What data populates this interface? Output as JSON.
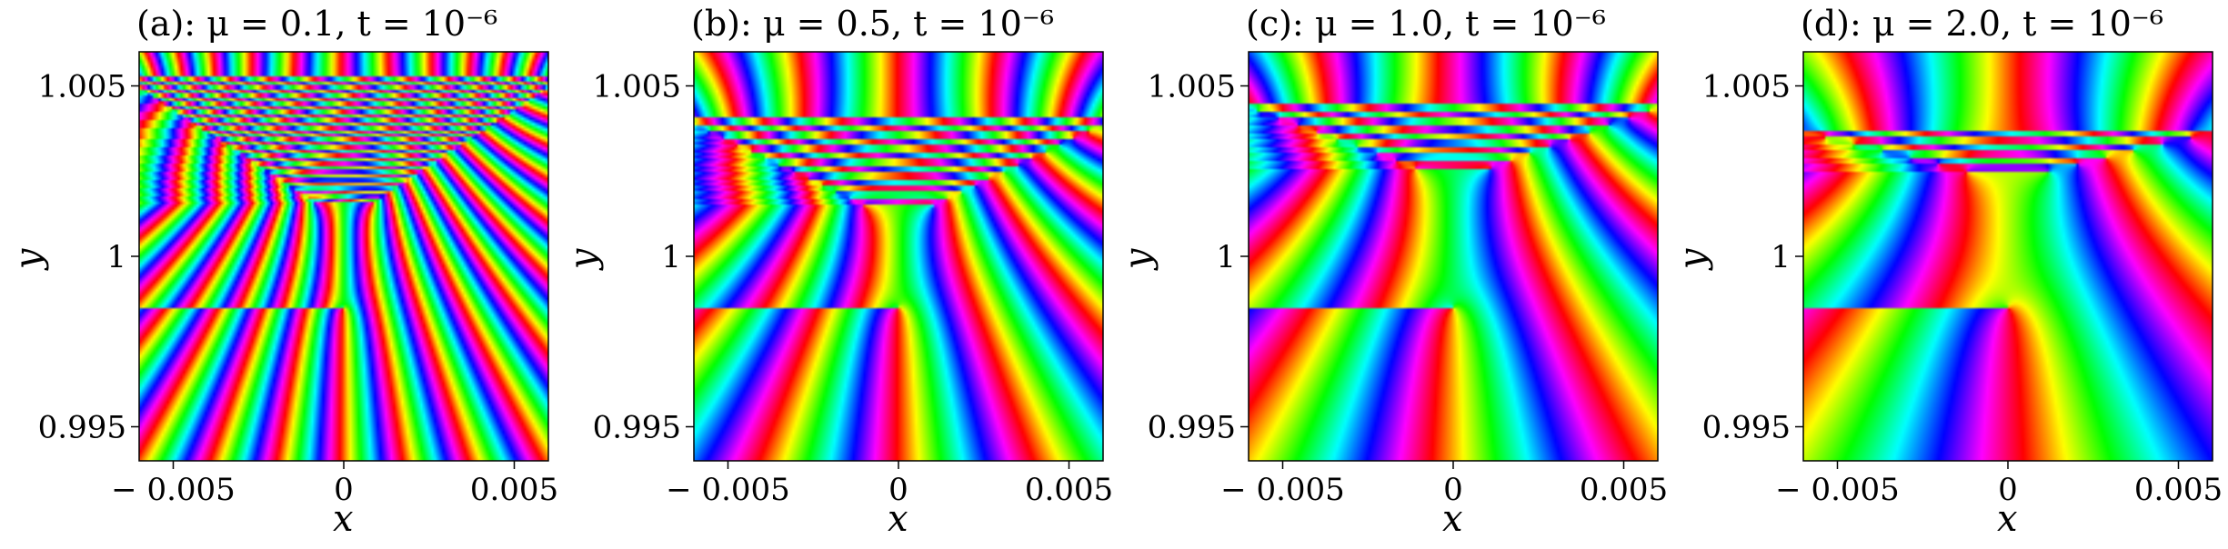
{
  "chart_data": [
    {
      "type": "heatmap",
      "title": "(a): μ = 0.1, t = 10⁻⁶",
      "xlabel": "x",
      "ylabel": "y",
      "xlim": [
        -0.006,
        0.006
      ],
      "ylim": [
        0.994,
        1.006
      ],
      "xticks": [
        {
          "value": -0.005,
          "label": "− 0.005"
        },
        {
          "value": 0,
          "label": "0"
        },
        {
          "value": 0.005,
          "label": "0.005"
        }
      ],
      "yticks": [
        {
          "value": 1.005,
          "label": "1.005"
        },
        {
          "value": 1,
          "label": "1"
        },
        {
          "value": 0.995,
          "label": "0.995"
        }
      ],
      "mu": 0.1
    },
    {
      "type": "heatmap",
      "title": "(b): μ = 0.5, t = 10⁻⁶",
      "xlabel": "x",
      "ylabel": "y",
      "xlim": [
        -0.006,
        0.006
      ],
      "ylim": [
        0.994,
        1.006
      ],
      "xticks": [
        {
          "value": -0.005,
          "label": "− 0.005"
        },
        {
          "value": 0,
          "label": "0"
        },
        {
          "value": 0.005,
          "label": "0.005"
        }
      ],
      "yticks": [
        {
          "value": 1.005,
          "label": "1.005"
        },
        {
          "value": 1,
          "label": "1"
        },
        {
          "value": 0.995,
          "label": "0.995"
        }
      ],
      "mu": 0.5
    },
    {
      "type": "heatmap",
      "title": "(c): μ = 1.0, t = 10⁻⁶",
      "xlabel": "x",
      "ylabel": "y",
      "xlim": [
        -0.006,
        0.006
      ],
      "ylim": [
        0.994,
        1.006
      ],
      "xticks": [
        {
          "value": -0.005,
          "label": "− 0.005"
        },
        {
          "value": 0,
          "label": "0"
        },
        {
          "value": 0.005,
          "label": "0.005"
        }
      ],
      "yticks": [
        {
          "value": 1.005,
          "label": "1.005"
        },
        {
          "value": 1,
          "label": "1"
        },
        {
          "value": 0.995,
          "label": "0.995"
        }
      ],
      "mu": 1.0
    },
    {
      "type": "heatmap",
      "title": "(d): μ = 2.0, t = 10⁻⁶",
      "xlabel": "x",
      "ylabel": "y",
      "xlim": [
        -0.006,
        0.006
      ],
      "ylim": [
        0.994,
        1.006
      ],
      "xticks": [
        {
          "value": -0.005,
          "label": "− 0.005"
        },
        {
          "value": 0,
          "label": "0"
        },
        {
          "value": 0.005,
          "label": "0.005"
        }
      ],
      "yticks": [
        {
          "value": 1.005,
          "label": "1.005"
        },
        {
          "value": 1,
          "label": "1"
        },
        {
          "value": 0.995,
          "label": "0.995"
        }
      ],
      "mu": 2.0
    }
  ]
}
